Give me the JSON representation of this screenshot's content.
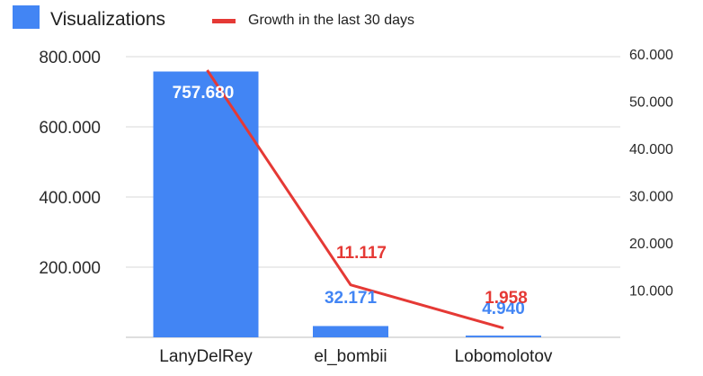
{
  "chart_data": {
    "type": "bar",
    "categories": [
      "LanyDelRey",
      "el_bombii",
      "Lobomolotov"
    ],
    "series": [
      {
        "name": "Visualizations",
        "type": "bar",
        "axis": "left",
        "values": [
          757680,
          32171,
          4940
        ],
        "labels": [
          "757.680",
          "32.171",
          "4.940"
        ]
      },
      {
        "name": "Growth in the last 30 days",
        "type": "line",
        "axis": "right",
        "values": [
          57000,
          11117,
          1958
        ],
        "labels": [
          "",
          "11.117",
          "1.958"
        ]
      }
    ],
    "y_left": {
      "ylim": [
        0,
        800000
      ],
      "ticks": [
        200000,
        400000,
        600000,
        800000
      ],
      "tick_labels": [
        "200.000",
        "400.000",
        "600.000",
        "800.000"
      ]
    },
    "y_right": {
      "ylim": [
        0,
        60000
      ],
      "ticks": [
        10000,
        20000,
        30000,
        40000,
        50000,
        60000
      ],
      "tick_labels": [
        "10.000",
        "20.000",
        "30.000",
        "40.000",
        "50.000",
        "60.000"
      ]
    },
    "grid": true,
    "legend": "top-left",
    "colors": {
      "bar": "#4285f4",
      "line": "#e53935",
      "grid": "#d9d9d9"
    }
  }
}
